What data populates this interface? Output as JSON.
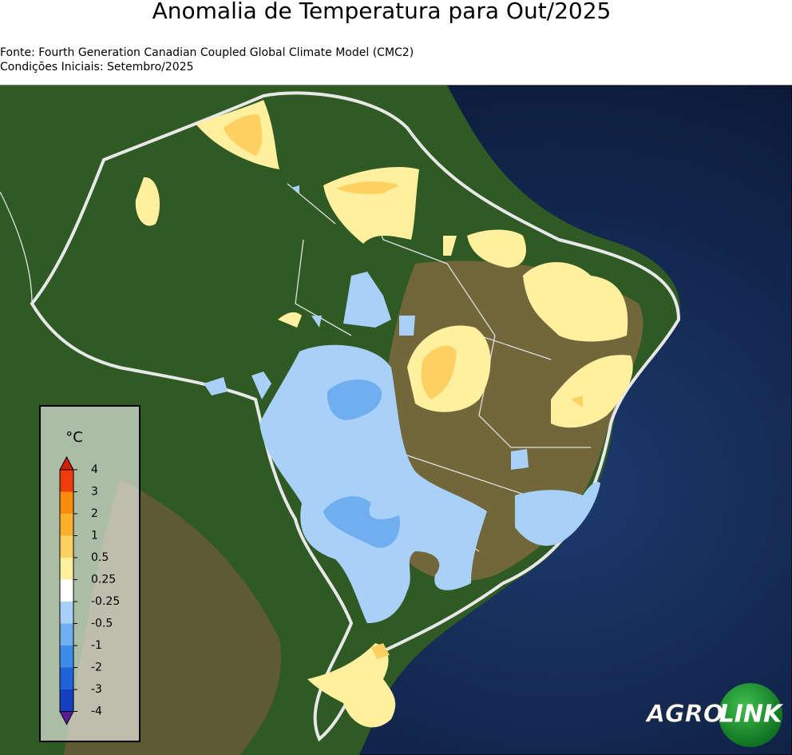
{
  "header": {
    "title": "Anomalia de Temperatura para Out/2025",
    "source": "Fonte: Fourth Generation Canadian Coupled Global Climate Model (CMC2)",
    "initial_conditions": "Condições Iniciais: Setembro/2025"
  },
  "colorbar": {
    "unit": "°C",
    "ticks": [
      4,
      3,
      2,
      1,
      0.5,
      0.25,
      -0.25,
      -0.5,
      -1,
      -2,
      -3,
      -4
    ],
    "colors": [
      "#f03c0c",
      "#f98c0a",
      "#fdb02b",
      "#fdd062",
      "#fff0a0",
      "#ffffff",
      "#a8d0f8",
      "#70aef0",
      "#3c8ce8",
      "#1e64d8",
      "#1440c0"
    ],
    "extend_colors": [
      "#d02000",
      "#5a1a9a"
    ]
  },
  "logo": {
    "left": "AGRO",
    "right": "LINK"
  }
}
